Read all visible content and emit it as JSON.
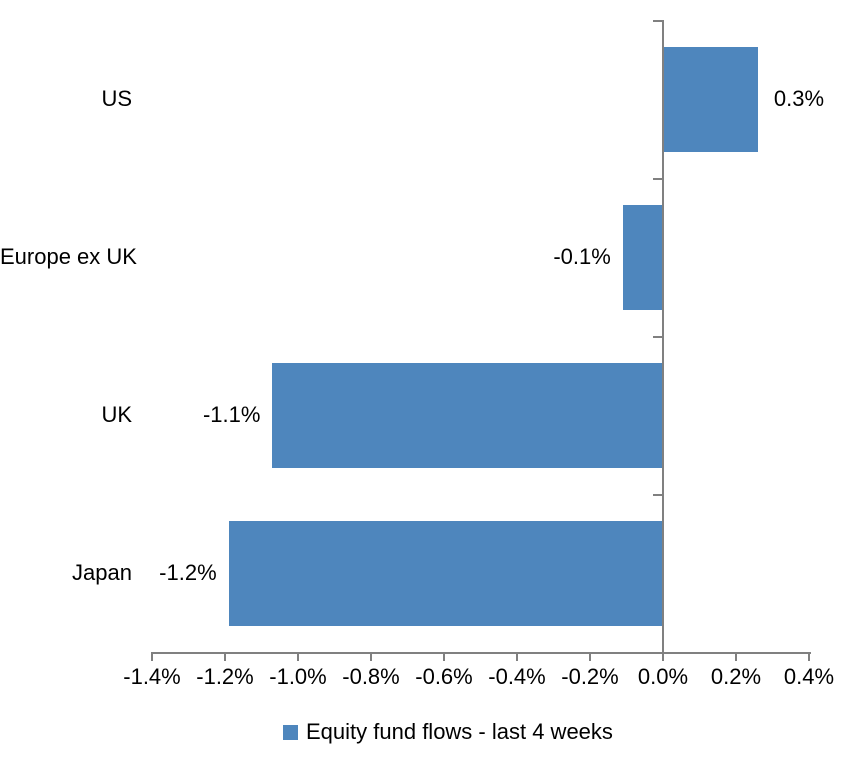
{
  "chart_data": {
    "type": "bar",
    "orientation": "horizontal",
    "title": "",
    "xlabel": "",
    "ylabel": "",
    "categories": [
      "US",
      "Europe ex UK",
      "UK",
      "Japan"
    ],
    "series": [
      {
        "name": "Equity fund flows - last 4 weeks",
        "values": [
          0.3,
          -0.1,
          -1.1,
          -1.2
        ],
        "value_labels": [
          "0.3%",
          "-0.1%",
          "-1.1%",
          "-1.2%"
        ],
        "bar_extents_pct": [
          0.26,
          -0.11,
          -1.07,
          -1.19
        ]
      }
    ],
    "unit": "%",
    "xlim": [
      -1.4,
      0.4
    ],
    "x_tick_step": 0.2,
    "x_tick_labels": [
      "-1.4%",
      "-1.2%",
      "-1.0%",
      "-0.8%",
      "-0.6%",
      "-0.4%",
      "-0.2%",
      "0.0%",
      "0.2%",
      "0.4%"
    ],
    "grid": false,
    "legend": {
      "position": "bottom",
      "label": "Equity fund flows - last 4 weeks"
    },
    "colors": {
      "bar": "#4E86BD",
      "axis": "#808080",
      "text": "#000000",
      "background": "#FFFFFF"
    }
  }
}
